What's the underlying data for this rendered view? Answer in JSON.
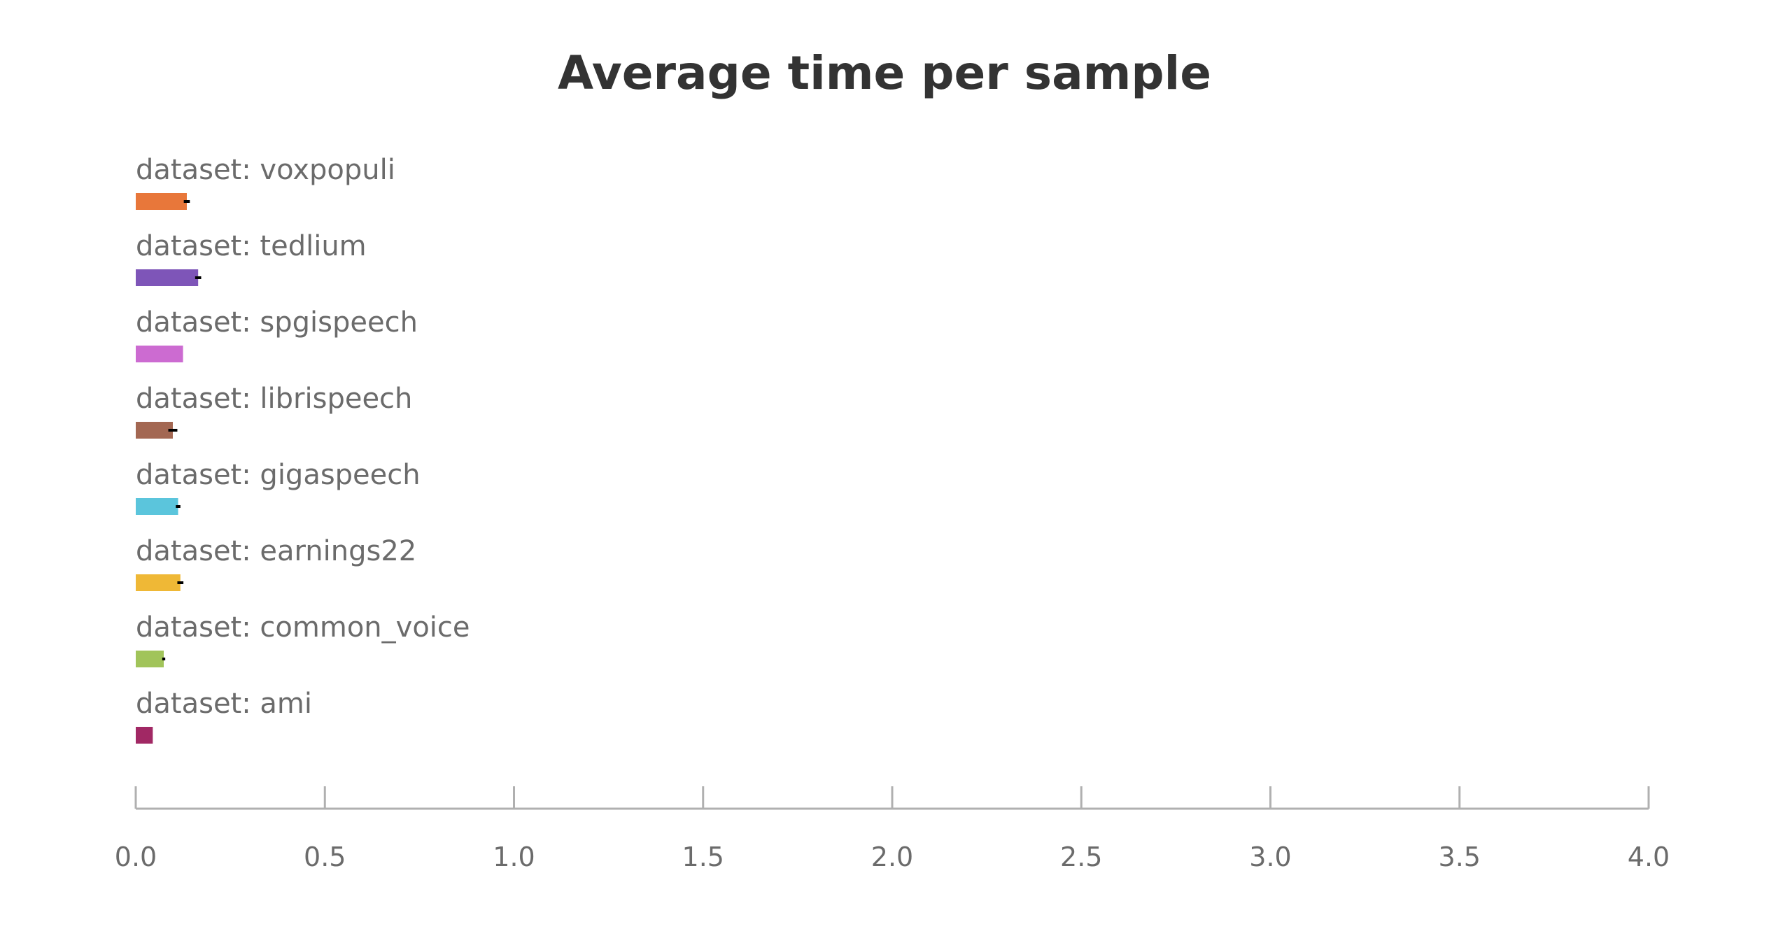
{
  "chart_data": {
    "type": "bar",
    "orientation": "horizontal",
    "title": "Average time per sample",
    "xlabel": "",
    "ylabel": "",
    "xlim": [
      0,
      4
    ],
    "x_ticks": [
      "0.0",
      "0.5",
      "1.0",
      "1.5",
      "2.0",
      "2.5",
      "3.0",
      "3.5",
      "4.0"
    ],
    "grid": false,
    "legend": "none",
    "bars": [
      {
        "label": "dataset: voxpopuli",
        "value": 0.135,
        "error": 0.008,
        "color": "#e8773a"
      },
      {
        "label": "dataset: tedlium",
        "value": 0.165,
        "error": 0.008,
        "color": "#7e55b8"
      },
      {
        "label": "dataset: spgispeech",
        "value": 0.125,
        "error": 0.0,
        "color": "#cc6bd1"
      },
      {
        "label": "dataset: librispeech",
        "value": 0.098,
        "error": 0.012,
        "color": "#a36752"
      },
      {
        "label": "dataset: gigaspeech",
        "value": 0.112,
        "error": 0.006,
        "color": "#5bc5dc"
      },
      {
        "label": "dataset: earnings22",
        "value": 0.118,
        "error": 0.008,
        "color": "#efb836"
      },
      {
        "label": "dataset: common_voice",
        "value": 0.074,
        "error": 0.004,
        "color": "#a1c45a"
      },
      {
        "label": "dataset: ami",
        "value": 0.045,
        "error": 0.0,
        "color": "#a12864"
      }
    ]
  }
}
